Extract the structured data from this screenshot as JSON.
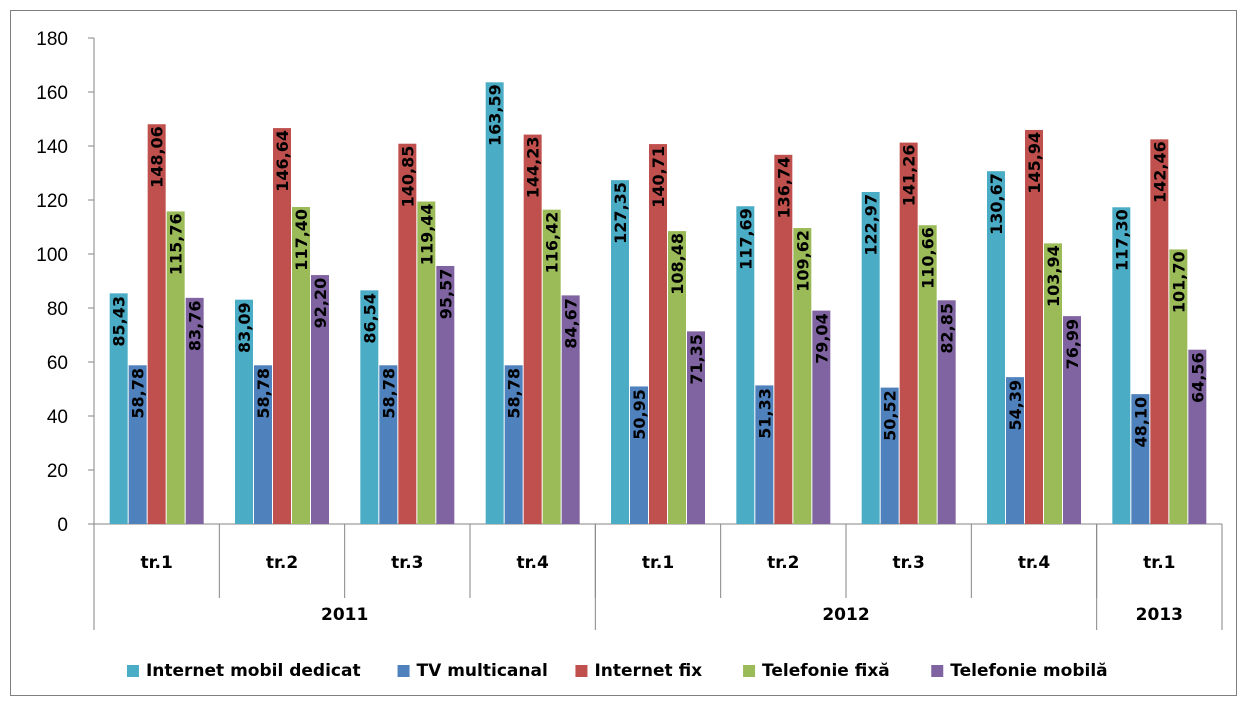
{
  "chart_data": {
    "type": "bar",
    "title": "",
    "xlabel": "",
    "ylabel": "",
    "ylim": [
      0,
      180
    ],
    "y_ticks": [
      "0",
      "20",
      "40",
      "60",
      "80",
      "100",
      "120",
      "140",
      "160",
      "180"
    ],
    "grid": false,
    "legend_position": "bottom",
    "categories": [
      "tr.1",
      "tr.2",
      "tr.3",
      "tr.4",
      "tr.1",
      "tr.2",
      "tr.3",
      "tr.4",
      "tr.1"
    ],
    "groups": [
      {
        "label": "2011",
        "count": 4
      },
      {
        "label": "2012",
        "count": 4
      },
      {
        "label": "2013",
        "count": 1
      }
    ],
    "series": [
      {
        "name": "Internet mobil dedicat",
        "color": "#4bacc6",
        "values": [
          85.43,
          83.09,
          86.54,
          163.59,
          127.35,
          117.69,
          122.97,
          130.67,
          117.3
        ],
        "labels": [
          "85,43",
          "83,09",
          "86,54",
          "163,59",
          "127,35",
          "117,69",
          "122,97",
          "130,67",
          "117,30"
        ]
      },
      {
        "name": "TV multicanal",
        "color": "#4f81bd",
        "values": [
          58.78,
          58.78,
          58.78,
          58.78,
          50.95,
          51.33,
          50.52,
          54.39,
          48.1
        ],
        "labels": [
          "58,78",
          "58,78",
          "58,78",
          "58,78",
          "50,95",
          "51,33",
          "50,52",
          "54,39",
          "48,10"
        ]
      },
      {
        "name": "Internet fix",
        "color": "#c0504d",
        "values": [
          148.06,
          146.64,
          140.85,
          144.23,
          140.71,
          136.74,
          141.26,
          145.94,
          142.46
        ],
        "labels": [
          "148,06",
          "146,64",
          "140,85",
          "144,23",
          "140,71",
          "136,74",
          "141,26",
          "145,94",
          "142,46"
        ]
      },
      {
        "name": "Telefonie fixă",
        "color": "#9bbb59",
        "values": [
          115.76,
          117.4,
          119.44,
          116.42,
          108.48,
          109.62,
          110.66,
          103.94,
          101.7
        ],
        "labels": [
          "115,76",
          "117,40",
          "119,44",
          "116,42",
          "108,48",
          "109,62",
          "110,66",
          "103,94",
          "101,70"
        ]
      },
      {
        "name": "Telefonie mobilă",
        "color": "#8064a2",
        "values": [
          83.76,
          92.2,
          95.57,
          84.67,
          71.35,
          79.04,
          82.85,
          76.99,
          64.56
        ],
        "labels": [
          "83,76",
          "92,20",
          "95,57",
          "84,67",
          "71,35",
          "79,04",
          "82,85",
          "76,99",
          "64,56"
        ]
      }
    ]
  }
}
